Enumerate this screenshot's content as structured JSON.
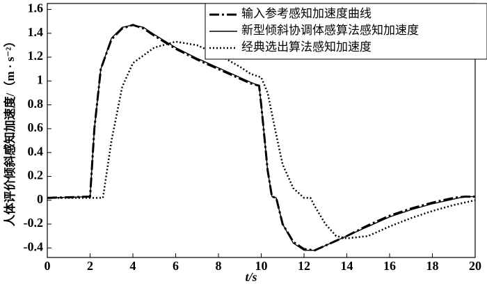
{
  "chart_data": {
    "type": "line",
    "xlabel": "t/s",
    "ylabel": "人体评价倾斜感知加速度/（m · s⁻²）",
    "xlim": [
      0,
      20
    ],
    "xticks": [
      0,
      2,
      4,
      6,
      8,
      10,
      12,
      14,
      16,
      18,
      20
    ],
    "ylim": [
      -0.48,
      1.65
    ],
    "yticks": [
      -0.4,
      -0.2,
      0,
      0.2,
      0.4,
      0.6,
      0.8,
      1,
      1.2,
      1.4,
      1.6
    ],
    "legend": "upper right",
    "series": [
      {
        "name": "输入参考感知加速度曲线",
        "color": "#000000",
        "linestyle": "dashdot",
        "x": [
          0,
          2,
          2.2,
          2.5,
          3,
          3.5,
          4,
          4.5,
          5,
          6,
          7,
          8,
          9,
          9.5,
          9.9,
          10,
          10.3,
          10.5,
          10.7,
          11,
          11.5,
          12,
          12.5,
          13,
          14,
          15,
          16,
          17,
          18,
          19,
          19.5,
          20
        ],
        "values": [
          0.02,
          0.03,
          0.6,
          1.1,
          1.35,
          1.44,
          1.47,
          1.44,
          1.38,
          1.27,
          1.18,
          1.1,
          1.02,
          0.98,
          0.96,
          0.8,
          0.25,
          0.03,
          0.02,
          -0.2,
          -0.35,
          -0.41,
          -0.42,
          -0.38,
          -0.3,
          -0.21,
          -0.13,
          -0.07,
          -0.02,
          0.02,
          0.03,
          0.03
        ]
      },
      {
        "name": "新型倾斜协调体感算法感知加速度",
        "color": "#000000",
        "linestyle": "solid",
        "x": [
          0,
          2,
          2.2,
          2.5,
          3,
          3.5,
          4,
          4.5,
          5,
          6,
          7,
          8,
          9,
          9.5,
          9.9,
          10,
          10.3,
          10.5,
          10.7,
          11,
          11.5,
          12,
          12.5,
          13,
          14,
          15,
          16,
          17,
          18,
          19,
          19.5,
          20
        ],
        "values": [
          0.02,
          0.03,
          0.6,
          1.1,
          1.36,
          1.45,
          1.47,
          1.45,
          1.39,
          1.28,
          1.19,
          1.11,
          1.03,
          0.99,
          0.96,
          0.8,
          0.25,
          0.03,
          0.02,
          -0.2,
          -0.36,
          -0.42,
          -0.42,
          -0.38,
          -0.3,
          -0.22,
          -0.14,
          -0.08,
          -0.03,
          0.01,
          0.03,
          0.03
        ]
      },
      {
        "name": "经典选出算法感知加速度",
        "color": "#000000",
        "linestyle": "dotted",
        "x": [
          0,
          2.6,
          3,
          3.5,
          4,
          5,
          6,
          7,
          8,
          9,
          9.5,
          10,
          10.3,
          10.7,
          11,
          11.5,
          12,
          12.3,
          12.5,
          13,
          13.5,
          14,
          15,
          16,
          17,
          18,
          19,
          20
        ],
        "values": [
          0.02,
          0.02,
          0.5,
          0.95,
          1.15,
          1.28,
          1.33,
          1.3,
          1.22,
          1.12,
          1.06,
          1.03,
          0.9,
          0.55,
          0.3,
          0.1,
          0.02,
          0.02,
          -0.05,
          -0.2,
          -0.3,
          -0.32,
          -0.3,
          -0.22,
          -0.15,
          -0.09,
          -0.04,
          0
        ]
      }
    ]
  }
}
